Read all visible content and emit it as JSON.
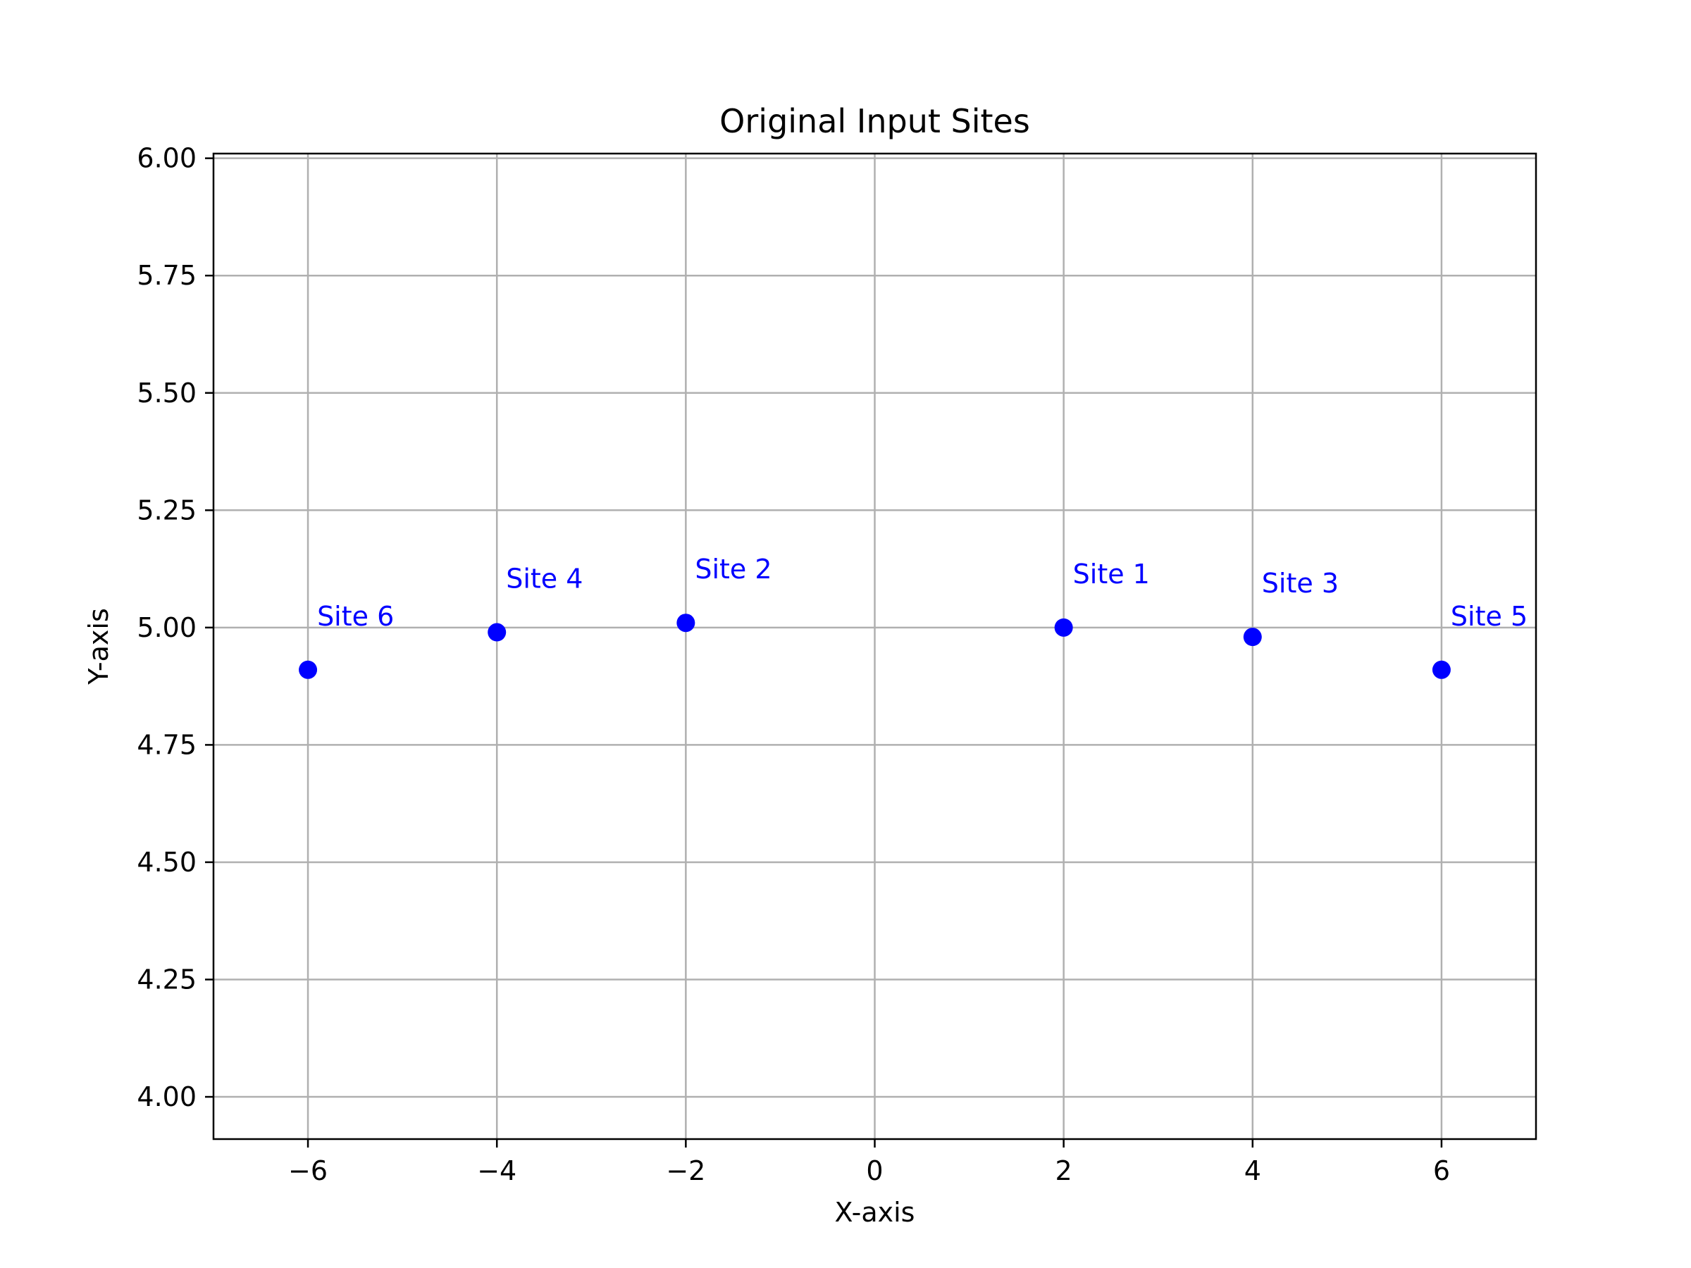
{
  "chart_data": {
    "type": "scatter",
    "title": "Original Input Sites",
    "xlabel": "X-axis",
    "ylabel": "Y-axis",
    "xlim": [
      -7,
      7
    ],
    "ylim": [
      3.91,
      6.01
    ],
    "x_ticks": [
      {
        "value": -6,
        "label": "−6"
      },
      {
        "value": -4,
        "label": "−4"
      },
      {
        "value": -2,
        "label": "−2"
      },
      {
        "value": 0,
        "label": "0"
      },
      {
        "value": 2,
        "label": "2"
      },
      {
        "value": 4,
        "label": "4"
      },
      {
        "value": 6,
        "label": "6"
      }
    ],
    "y_ticks": [
      {
        "value": 4.0,
        "label": "4.00"
      },
      {
        "value": 4.25,
        "label": "4.25"
      },
      {
        "value": 4.5,
        "label": "4.50"
      },
      {
        "value": 4.75,
        "label": "4.75"
      },
      {
        "value": 5.0,
        "label": "5.00"
      },
      {
        "value": 5.25,
        "label": "5.25"
      },
      {
        "value": 5.5,
        "label": "5.50"
      },
      {
        "value": 5.75,
        "label": "5.75"
      },
      {
        "value": 6.0,
        "label": "6.00"
      }
    ],
    "grid": true,
    "point_color": "#0000ff",
    "points": [
      {
        "label": "Site 1",
        "x": 2,
        "y": 5.0
      },
      {
        "label": "Site 2",
        "x": -2,
        "y": 5.01
      },
      {
        "label": "Site 3",
        "x": 4,
        "y": 4.98
      },
      {
        "label": "Site 4",
        "x": -4,
        "y": 4.99
      },
      {
        "label": "Site 5",
        "x": 6,
        "y": 4.91
      },
      {
        "label": "Site 6",
        "x": -6,
        "y": 4.91
      }
    ]
  }
}
